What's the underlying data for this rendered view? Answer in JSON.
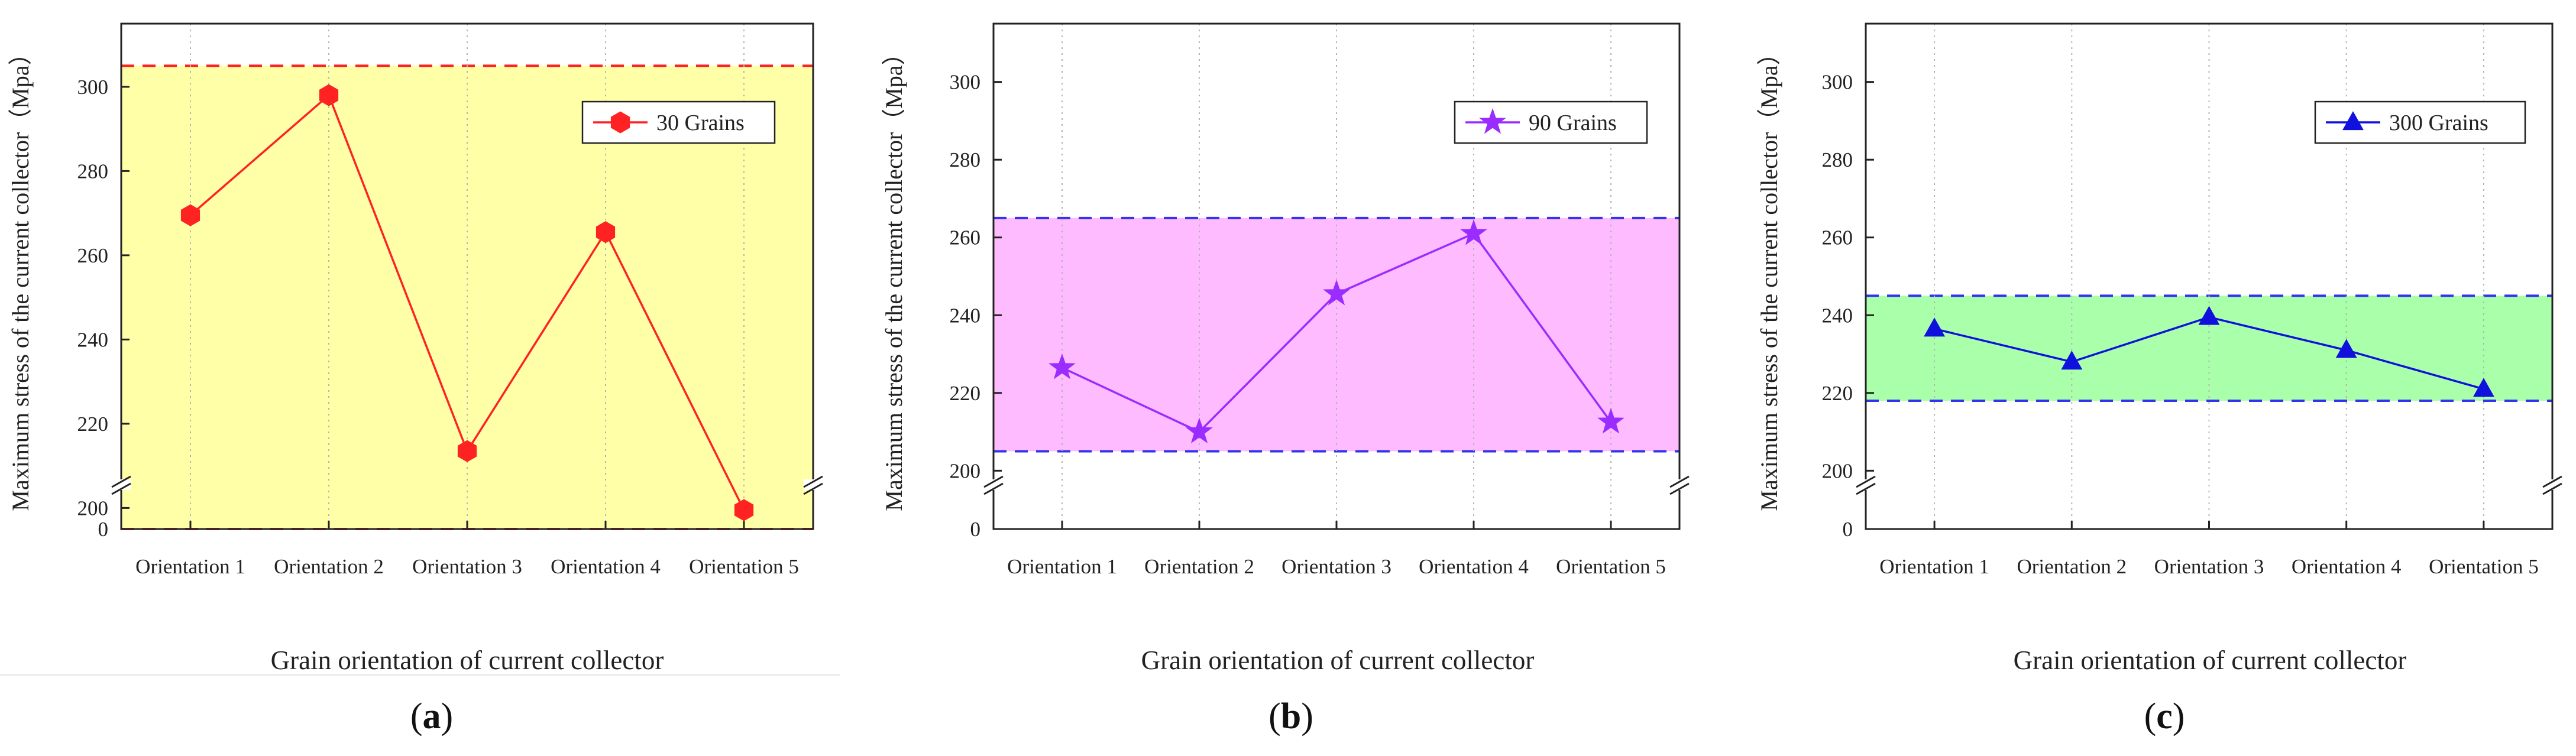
{
  "chart_data": [
    {
      "type": "line",
      "panel_label": "a",
      "title": "",
      "xlabel": "Grain orientation of current collector",
      "ylabel": "Maximum stress of the current collector（Mpa）",
      "categories": [
        "Orientation 1",
        "Orientation 2",
        "Orientation 3",
        "Orientation 4",
        "Orientation 5"
      ],
      "series": [
        {
          "name": "30 Grains",
          "values": [
            269.5,
            298.0,
            213.5,
            265.5,
            199.5
          ],
          "marker": "hexagon",
          "color": "#ff2222"
        }
      ],
      "ylim": [
        195,
        315
      ],
      "yticks": [
        200,
        220,
        240,
        260,
        280,
        300
      ],
      "yzero_label": "0",
      "axis_break": true,
      "band": {
        "lower": 195,
        "upper": 305,
        "fill": "#ffffa8",
        "line_color": "#ff2222"
      },
      "legend_position": "top-right",
      "grid": "vertical-dotted"
    },
    {
      "type": "line",
      "panel_label": "b",
      "title": "",
      "xlabel": "Grain orientation of current collector",
      "ylabel": "Maximum stress of the current collector（Mpa）",
      "categories": [
        "Orientation 1",
        "Orientation 2",
        "Orientation 3",
        "Orientation 4",
        "Orientation 5"
      ],
      "series": [
        {
          "name": "90 Grains",
          "values": [
            226.5,
            210.0,
            245.5,
            261.0,
            212.5
          ],
          "marker": "star",
          "color": "#9b2cff"
        }
      ],
      "ylim": [
        185,
        315
      ],
      "yticks": [
        200,
        220,
        240,
        260,
        280,
        300
      ],
      "yzero_label": "0",
      "axis_break": true,
      "band": {
        "lower": 205,
        "upper": 265,
        "fill": "#ffbbff",
        "line_color": "#3333ee"
      },
      "legend_position": "top-right",
      "grid": "vertical-dotted"
    },
    {
      "type": "line",
      "panel_label": "c",
      "title": "",
      "xlabel": "Grain orientation of current collector",
      "ylabel": "Maximum stress of the current collector（Mpa）",
      "categories": [
        "Orientation 1",
        "Orientation 2",
        "Orientation 3",
        "Orientation 4",
        "Orientation 5"
      ],
      "series": [
        {
          "name": "300 Grains",
          "values": [
            236.5,
            228.0,
            239.5,
            231.0,
            221.0
          ],
          "marker": "triangle",
          "color": "#1111dd"
        }
      ],
      "ylim": [
        185,
        315
      ],
      "yticks": [
        200,
        220,
        240,
        260,
        280,
        300
      ],
      "yzero_label": "0",
      "axis_break": true,
      "band": {
        "lower": 218,
        "upper": 245,
        "fill": "#aaffaa",
        "line_color": "#3333ee"
      },
      "legend_position": "top-right",
      "grid": "vertical-dotted"
    }
  ]
}
